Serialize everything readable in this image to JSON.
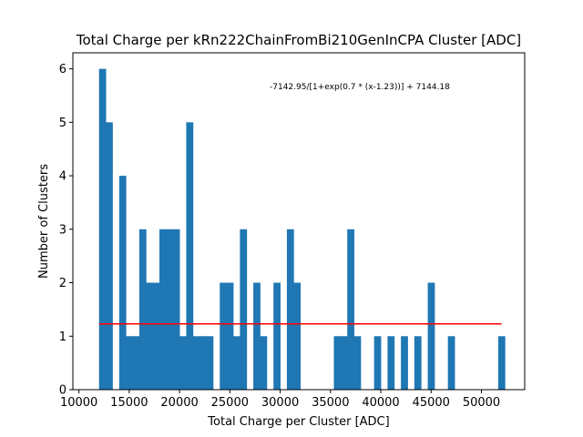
{
  "chart_data": {
    "type": "bar",
    "title": "Total Charge per kRn222ChainFromBi210GenInCPA Cluster [ADC]",
    "xlabel": "Total Charge per Cluster [ADC]",
    "ylabel": "Number of Clusters",
    "xlim": [
      9400,
      54300
    ],
    "ylim": [
      0,
      6.3
    ],
    "xticks": [
      10000,
      15000,
      20000,
      25000,
      30000,
      35000,
      40000,
      45000,
      50000
    ],
    "yticks": [
      0,
      1,
      2,
      3,
      4,
      5,
      6
    ],
    "grid": false,
    "bar_color": "#1f77b4",
    "bin_width": 667,
    "bins": [
      {
        "x": 12000,
        "count": 6
      },
      {
        "x": 12667,
        "count": 5
      },
      {
        "x": 13333,
        "count": 0
      },
      {
        "x": 14000,
        "count": 4
      },
      {
        "x": 14667,
        "count": 1
      },
      {
        "x": 15333,
        "count": 1
      },
      {
        "x": 16000,
        "count": 3
      },
      {
        "x": 16667,
        "count": 2
      },
      {
        "x": 17333,
        "count": 2
      },
      {
        "x": 18000,
        "count": 3
      },
      {
        "x": 18667,
        "count": 3
      },
      {
        "x": 19333,
        "count": 3
      },
      {
        "x": 20000,
        "count": 1
      },
      {
        "x": 20667,
        "count": 5
      },
      {
        "x": 21333,
        "count": 1
      },
      {
        "x": 22000,
        "count": 1
      },
      {
        "x": 22667,
        "count": 1
      },
      {
        "x": 24000,
        "count": 2
      },
      {
        "x": 24667,
        "count": 2
      },
      {
        "x": 25333,
        "count": 1
      },
      {
        "x": 26000,
        "count": 3
      },
      {
        "x": 27333,
        "count": 2
      },
      {
        "x": 28000,
        "count": 1
      },
      {
        "x": 29333,
        "count": 2
      },
      {
        "x": 30667,
        "count": 3
      },
      {
        "x": 31333,
        "count": 2
      },
      {
        "x": 35333,
        "count": 1
      },
      {
        "x": 36000,
        "count": 1
      },
      {
        "x": 36667,
        "count": 3
      },
      {
        "x": 37333,
        "count": 1
      },
      {
        "x": 39333,
        "count": 1
      },
      {
        "x": 40667,
        "count": 1
      },
      {
        "x": 42000,
        "count": 1
      },
      {
        "x": 43333,
        "count": 1
      },
      {
        "x": 44667,
        "count": 2
      },
      {
        "x": 46667,
        "count": 1
      },
      {
        "x": 51667,
        "count": 1
      }
    ],
    "fit_line": {
      "color": "#ff0000",
      "x": [
        12000,
        52000
      ],
      "y": [
        1.23,
        1.23
      ],
      "label": "-7142.95/[1+exp(0.7 * (x-1.23))] + 7144.18",
      "label_position": "top-right"
    }
  }
}
